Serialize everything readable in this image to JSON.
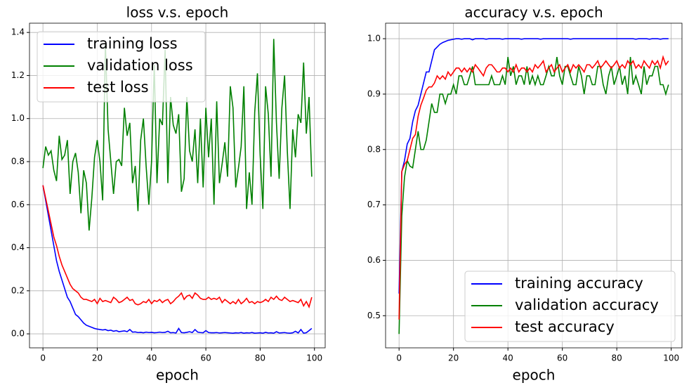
{
  "chart_data": [
    {
      "type": "line",
      "title": "loss v.s. epoch",
      "x_label": "epoch",
      "x": [
        0,
        1,
        2,
        3,
        4,
        5,
        6,
        7,
        8,
        9,
        10,
        11,
        12,
        13,
        14,
        15,
        16,
        17,
        18,
        19,
        20,
        21,
        22,
        23,
        24,
        25,
        26,
        27,
        28,
        29,
        30,
        31,
        32,
        33,
        34,
        35,
        36,
        37,
        38,
        39,
        40,
        41,
        42,
        43,
        44,
        45,
        46,
        47,
        48,
        49,
        50,
        51,
        52,
        53,
        54,
        55,
        56,
        57,
        58,
        59,
        60,
        61,
        62,
        63,
        64,
        65,
        66,
        67,
        68,
        69,
        70,
        71,
        72,
        73,
        74,
        75,
        76,
        77,
        78,
        79,
        80,
        81,
        82,
        83,
        84,
        85,
        86,
        87,
        88,
        89,
        90,
        91,
        92,
        93,
        94,
        95,
        96,
        97,
        98,
        99
      ],
      "series": [
        {
          "name": "training loss",
          "color": "#0000ff",
          "values": [
            0.69,
            0.62,
            0.55,
            0.48,
            0.41,
            0.34,
            0.29,
            0.25,
            0.21,
            0.17,
            0.15,
            0.12,
            0.09,
            0.08,
            0.065,
            0.05,
            0.04,
            0.035,
            0.03,
            0.025,
            0.022,
            0.02,
            0.018,
            0.02,
            0.015,
            0.017,
            0.012,
            0.015,
            0.01,
            0.012,
            0.014,
            0.01,
            0.02,
            0.008,
            0.009,
            0.006,
            0.007,
            0.005,
            0.008,
            0.006,
            0.007,
            0.005,
            0.006,
            0.008,
            0.006,
            0.007,
            0.012,
            0.005,
            0.006,
            0.004,
            0.025,
            0.006,
            0.005,
            0.007,
            0.01,
            0.006,
            0.02,
            0.008,
            0.006,
            0.005,
            0.015,
            0.006,
            0.005,
            0.005,
            0.006,
            0.004,
            0.005,
            0.006,
            0.005,
            0.004,
            0.003,
            0.005,
            0.004,
            0.006,
            0.003,
            0.005,
            0.004,
            0.006,
            0.003,
            0.004,
            0.005,
            0.003,
            0.007,
            0.004,
            0.005,
            0.003,
            0.01,
            0.004,
            0.005,
            0.006,
            0.004,
            0.003,
            0.005,
            0.012,
            0.004,
            0.02,
            0.003,
            0.005,
            0.015,
            0.025
          ]
        },
        {
          "name": "validation loss",
          "color": "#008000",
          "values": [
            0.77,
            0.87,
            0.83,
            0.85,
            0.76,
            0.71,
            0.92,
            0.81,
            0.83,
            0.9,
            0.65,
            0.8,
            0.84,
            0.75,
            0.56,
            0.76,
            0.7,
            0.48,
            0.63,
            0.82,
            0.9,
            0.8,
            0.62,
            1.35,
            0.95,
            0.8,
            0.65,
            0.8,
            0.81,
            0.78,
            1.05,
            0.92,
            0.98,
            0.7,
            0.78,
            0.57,
            0.9,
            1.0,
            0.78,
            0.6,
            0.8,
            1.25,
            0.7,
            1.0,
            0.97,
            1.32,
            0.7,
            1.1,
            0.97,
            0.93,
            1.02,
            0.66,
            0.72,
            1.1,
            0.85,
            0.8,
            0.95,
            0.7,
            1.0,
            0.68,
            1.05,
            0.82,
            1.0,
            0.6,
            1.08,
            0.7,
            0.79,
            0.89,
            0.73,
            1.15,
            1.05,
            0.68,
            0.77,
            0.87,
            1.15,
            0.58,
            0.75,
            0.6,
            1.03,
            1.21,
            0.83,
            0.58,
            1.15,
            1.02,
            0.73,
            1.37,
            0.98,
            0.72,
            1.05,
            1.2,
            0.85,
            0.58,
            0.95,
            0.82,
            1.02,
            0.98,
            1.26,
            0.93,
            1.1,
            0.73
          ]
        },
        {
          "name": "test loss",
          "color": "#ff0000",
          "values": [
            0.69,
            0.63,
            0.57,
            0.51,
            0.45,
            0.41,
            0.36,
            0.32,
            0.29,
            0.26,
            0.23,
            0.21,
            0.2,
            0.19,
            0.17,
            0.16,
            0.16,
            0.155,
            0.15,
            0.16,
            0.14,
            0.165,
            0.15,
            0.155,
            0.15,
            0.145,
            0.17,
            0.16,
            0.145,
            0.15,
            0.16,
            0.17,
            0.155,
            0.16,
            0.14,
            0.135,
            0.14,
            0.15,
            0.145,
            0.16,
            0.14,
            0.155,
            0.15,
            0.16,
            0.145,
            0.155,
            0.16,
            0.14,
            0.15,
            0.165,
            0.175,
            0.19,
            0.16,
            0.175,
            0.18,
            0.165,
            0.19,
            0.18,
            0.165,
            0.16,
            0.16,
            0.17,
            0.16,
            0.165,
            0.16,
            0.17,
            0.145,
            0.16,
            0.15,
            0.14,
            0.15,
            0.14,
            0.16,
            0.14,
            0.15,
            0.165,
            0.145,
            0.15,
            0.14,
            0.15,
            0.145,
            0.15,
            0.16,
            0.15,
            0.17,
            0.16,
            0.175,
            0.16,
            0.155,
            0.17,
            0.16,
            0.15,
            0.155,
            0.15,
            0.145,
            0.16,
            0.13,
            0.15,
            0.125,
            0.17
          ]
        }
      ],
      "xlim": [
        -4.95,
        103.95
      ],
      "xticks": [
        0,
        20,
        40,
        60,
        80,
        100
      ],
      "ylim": [
        -0.065,
        1.443
      ],
      "yticks": [
        {
          "value": 0,
          "label": "0.0"
        },
        0.2,
        0.4,
        0.6,
        0.8,
        {
          "value": 1,
          "label": "1.0"
        },
        1.2,
        1.4
      ],
      "grid": true,
      "legend": "upper left"
    },
    {
      "type": "line",
      "title": "accuracy v.s. epoch",
      "x_label": "epoch",
      "x": [
        0,
        1,
        2,
        3,
        4,
        5,
        6,
        7,
        8,
        9,
        10,
        11,
        12,
        13,
        14,
        15,
        16,
        17,
        18,
        19,
        20,
        21,
        22,
        23,
        24,
        25,
        26,
        27,
        28,
        29,
        30,
        31,
        32,
        33,
        34,
        35,
        36,
        37,
        38,
        39,
        40,
        41,
        42,
        43,
        44,
        45,
        46,
        47,
        48,
        49,
        50,
        51,
        52,
        53,
        54,
        55,
        56,
        57,
        58,
        59,
        60,
        61,
        62,
        63,
        64,
        65,
        66,
        67,
        68,
        69,
        70,
        71,
        72,
        73,
        74,
        75,
        76,
        77,
        78,
        79,
        80,
        81,
        82,
        83,
        84,
        85,
        86,
        87,
        88,
        89,
        90,
        91,
        92,
        93,
        94,
        95,
        96,
        97,
        98,
        99
      ],
      "series": [
        {
          "name": "training accuracy",
          "color": "#0000ff",
          "values": [
            0.54,
            0.76,
            0.78,
            0.81,
            0.82,
            0.85,
            0.87,
            0.88,
            0.9,
            0.92,
            0.94,
            0.94,
            0.96,
            0.98,
            0.985,
            0.99,
            0.993,
            0.995,
            0.997,
            0.998,
            0.999,
            1.0,
            1.0,
            0.999,
            1.0,
            1.0,
            1.0,
            0.998,
            1.0,
            1.0,
            1.0,
            1.0,
            0.999,
            1.0,
            1.0,
            1.0,
            1.0,
            1.0,
            0.999,
            1.0,
            1.0,
            1.0,
            1.0,
            1.0,
            1.0,
            0.999,
            1.0,
            1.0,
            1.0,
            1.0,
            1.0,
            1.0,
            0.999,
            1.0,
            1.0,
            1.0,
            1.0,
            1.0,
            1.0,
            1.0,
            1.0,
            1.0,
            1.0,
            0.999,
            1.0,
            1.0,
            1.0,
            1.0,
            1.0,
            1.0,
            1.0,
            1.0,
            1.0,
            1.0,
            1.0,
            1.0,
            1.0,
            1.0,
            1.0,
            1.0,
            1.0,
            1.0,
            1.0,
            1.0,
            1.0,
            1.0,
            1.0,
            0.999,
            1.0,
            1.0,
            1.0,
            1.0,
            0.999,
            1.0,
            1.0,
            1.0,
            0.999,
            1.0,
            1.0,
            1.0
          ]
        },
        {
          "name": "validation accuracy",
          "color": "#008000",
          "values": [
            0.467,
            0.68,
            0.75,
            0.78,
            0.77,
            0.767,
            0.8,
            0.833,
            0.8,
            0.8,
            0.817,
            0.85,
            0.883,
            0.867,
            0.867,
            0.9,
            0.9,
            0.883,
            0.9,
            0.9,
            0.917,
            0.9,
            0.933,
            0.933,
            0.917,
            0.917,
            0.933,
            0.95,
            0.917,
            0.917,
            0.917,
            0.917,
            0.917,
            0.917,
            0.933,
            0.917,
            0.917,
            0.917,
            0.933,
            0.917,
            0.967,
            0.933,
            0.95,
            0.917,
            0.933,
            0.933,
            0.917,
            0.95,
            0.917,
            0.933,
            0.917,
            0.933,
            0.917,
            0.917,
            0.933,
            0.95,
            0.933,
            0.933,
            0.967,
            0.933,
            0.917,
            0.95,
            0.95,
            0.933,
            0.917,
            0.917,
            0.95,
            0.933,
            0.9,
            0.933,
            0.933,
            0.917,
            0.917,
            0.95,
            0.95,
            0.917,
            0.9,
            0.933,
            0.95,
            0.917,
            0.933,
            0.95,
            0.917,
            0.933,
            0.9,
            0.967,
            0.917,
            0.933,
            0.917,
            0.9,
            0.95,
            0.917,
            0.933,
            0.933,
            0.95,
            0.95,
            0.917,
            0.917,
            0.9,
            0.917
          ]
        },
        {
          "name": "test accuracy",
          "color": "#ff0000",
          "values": [
            0.493,
            0.76,
            0.773,
            0.78,
            0.8,
            0.82,
            0.827,
            0.86,
            0.88,
            0.893,
            0.907,
            0.913,
            0.913,
            0.92,
            0.933,
            0.927,
            0.933,
            0.927,
            0.94,
            0.933,
            0.94,
            0.947,
            0.947,
            0.94,
            0.947,
            0.94,
            0.947,
            0.94,
            0.953,
            0.947,
            0.94,
            0.933,
            0.947,
            0.953,
            0.953,
            0.947,
            0.94,
            0.94,
            0.947,
            0.947,
            0.94,
            0.947,
            0.94,
            0.953,
            0.94,
            0.947,
            0.947,
            0.94,
            0.947,
            0.94,
            0.953,
            0.947,
            0.953,
            0.96,
            0.94,
            0.947,
            0.953,
            0.94,
            0.947,
            0.953,
            0.94,
            0.947,
            0.953,
            0.94,
            0.953,
            0.947,
            0.953,
            0.947,
            0.94,
            0.953,
            0.953,
            0.947,
            0.953,
            0.96,
            0.947,
            0.953,
            0.96,
            0.953,
            0.947,
            0.953,
            0.96,
            0.947,
            0.953,
            0.947,
            0.96,
            0.953,
            0.96,
            0.947,
            0.953,
            0.947,
            0.96,
            0.953,
            0.947,
            0.96,
            0.953,
            0.96,
            0.947,
            0.967,
            0.953,
            0.96
          ]
        }
      ],
      "xlim": [
        -4.95,
        103.95
      ],
      "xticks": [
        0,
        20,
        40,
        60,
        80,
        100
      ],
      "ylim": [
        0.442,
        1.028
      ],
      "yticks": [
        0.5,
        0.6,
        0.7,
        0.8,
        0.9,
        {
          "value": 1,
          "label": "1.0"
        }
      ],
      "grid": true,
      "legend": "lower right"
    }
  ]
}
